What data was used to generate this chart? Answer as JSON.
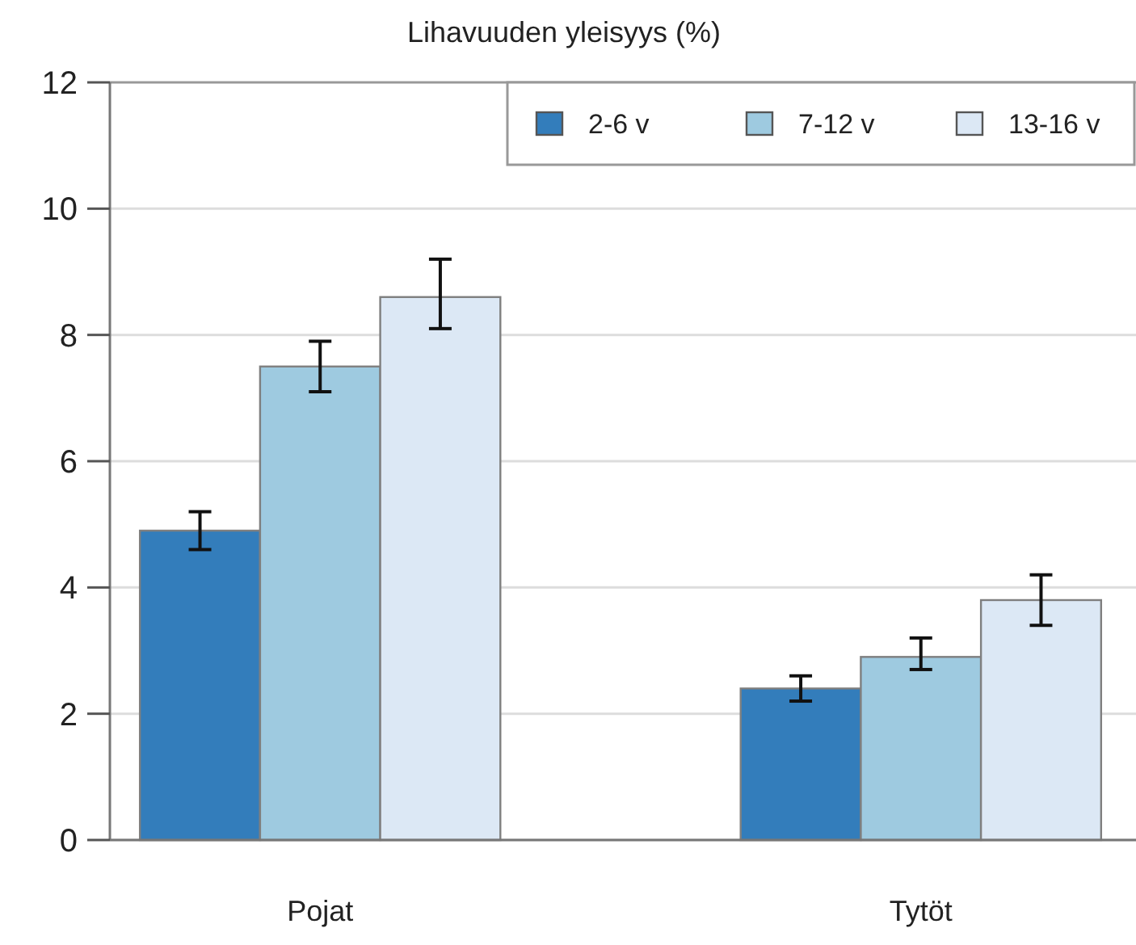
{
  "chart_data": {
    "type": "bar",
    "title": "Lihavuuden yleisyys (%)",
    "categories": [
      "Pojat",
      "Tytöt"
    ],
    "series": [
      {
        "name": "2-6 v",
        "color": "#337dbb",
        "values": [
          4.9,
          2.4
        ],
        "errors": [
          [
            4.6,
            5.2
          ],
          [
            2.2,
            2.6
          ]
        ]
      },
      {
        "name": "7-12 v",
        "color": "#9ecae0",
        "values": [
          7.5,
          2.9
        ],
        "errors": [
          [
            7.1,
            7.9
          ],
          [
            2.7,
            3.2
          ]
        ]
      },
      {
        "name": "13-16 v",
        "color": "#dce8f5",
        "values": [
          8.6,
          3.8
        ],
        "errors": [
          [
            8.1,
            9.2
          ],
          [
            3.4,
            4.2
          ]
        ]
      }
    ],
    "ylim": [
      0,
      12
    ],
    "yticks": [
      0,
      2,
      4,
      6,
      8,
      10,
      12
    ],
    "grid": "y",
    "legend": "top right"
  }
}
